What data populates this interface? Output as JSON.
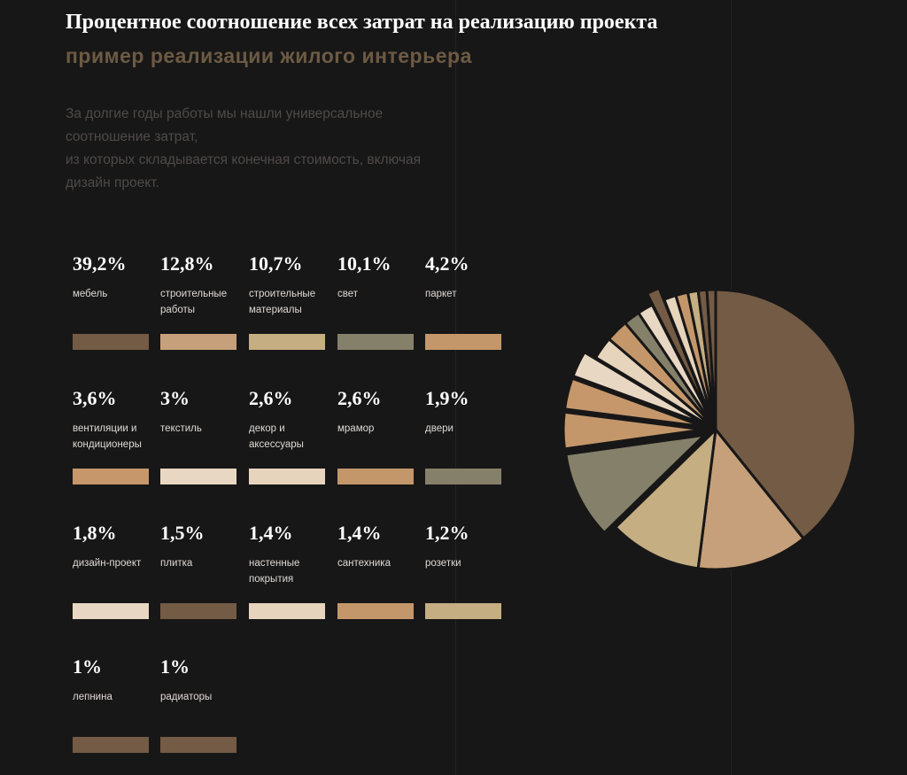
{
  "header": {
    "title": "Процентное соотношение всех затрат на реализацию проекта",
    "subtitle": "пример реализации жилого интерьера",
    "description": [
      "За долгие годы работы мы нашли универсальное",
      "соотношение затрат,",
      "из которых складывается конечная стоимость, включая",
      "дизайн проект."
    ]
  },
  "chart_data": {
    "type": "pie",
    "title": "Процентное соотношение всех затрат на реализацию проекта",
    "subtitle": "пример реализации жилого интерьера",
    "slices": [
      {
        "value_label": "39,2%",
        "value": 39.2,
        "label": "мебель",
        "color": "#735b45"
      },
      {
        "value_label": "12,8%",
        "value": 12.8,
        "label": "строительные работы",
        "color": "#c6a07a"
      },
      {
        "value_label": "10,7%",
        "value": 10.7,
        "label": "строительные материалы",
        "color": "#c4ae82"
      },
      {
        "value_label": "10,1%",
        "value": 10.1,
        "label": "свет",
        "color": "#85806a"
      },
      {
        "value_label": "4,2%",
        "value": 4.2,
        "label": "паркет",
        "color": "#c4976b"
      },
      {
        "value_label": "3,6%",
        "value": 3.6,
        "label": "вентиляции и кондиционеры",
        "color": "#c5976b"
      },
      {
        "value_label": "3%",
        "value": 3,
        "label": "текстиль",
        "color": "#e8d8c3"
      },
      {
        "value_label": "2,6%",
        "value": 2.6,
        "label": "декор и аксессуары",
        "color": "#e6d4bd"
      },
      {
        "value_label": "2,6%",
        "value": 2.6,
        "label": "мрамор",
        "color": "#c4976b"
      },
      {
        "value_label": "1,9%",
        "value": 1.9,
        "label": "двери",
        "color": "#85806a"
      },
      {
        "value_label": "1,8%",
        "value": 1.8,
        "label": "дизайн-проект",
        "color": "#e8d8c3"
      },
      {
        "value_label": "1,5%",
        "value": 1.5,
        "label": "плитка",
        "color": "#735b45"
      },
      {
        "value_label": "1,4%",
        "value": 1.4,
        "label": "настенные покрытия",
        "color": "#e6d4bd"
      },
      {
        "value_label": "1,4%",
        "value": 1.4,
        "label": "сантехника",
        "color": "#c4976b"
      },
      {
        "value_label": "1,2%",
        "value": 1.2,
        "label": "розетки",
        "color": "#c4ae82"
      },
      {
        "value_label": "1%",
        "value": 1,
        "label": "лепнина",
        "color": "#735b45"
      },
      {
        "value_label": "1%",
        "value": 1,
        "label": "радиаторы",
        "color": "#735b45"
      }
    ],
    "exploded_slices": [
      "вентиляции и кондиционеры",
      "текстиль",
      "плитка",
      "паркет",
      "свет"
    ]
  }
}
